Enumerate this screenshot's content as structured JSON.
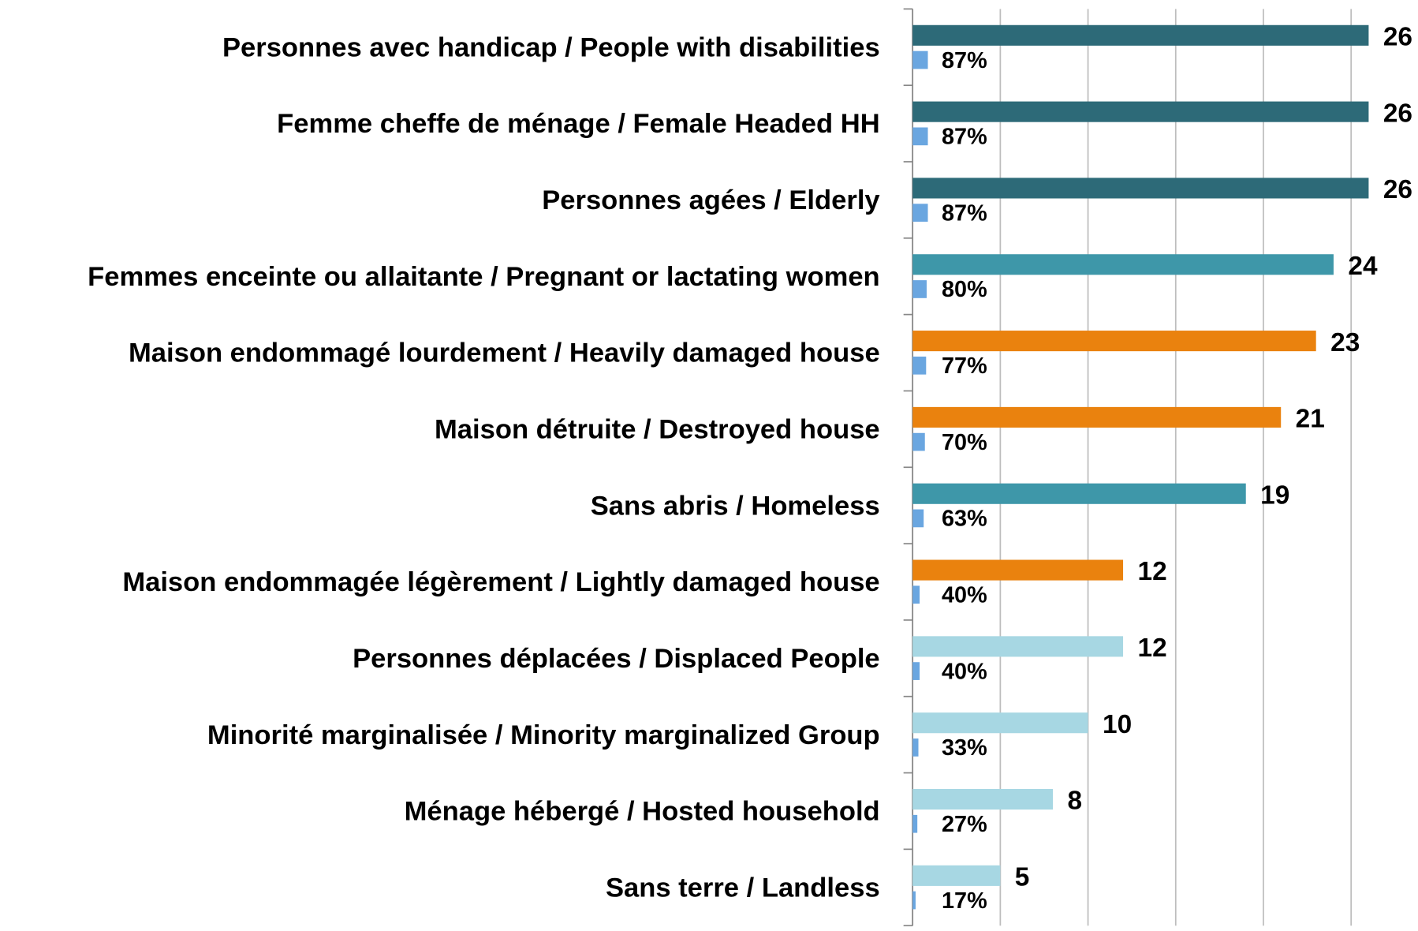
{
  "chart_data": {
    "type": "hbar",
    "categories": [
      "Personnes avec handicap / People with disabilities",
      "Femme cheffe de ménage / Female Headed HH",
      "Personnes agées / Elderly",
      "Femmes enceinte ou allaitante / Pregnant or lactating women",
      "Maison endommagé lourdement / Heavily damaged house",
      "Maison détruite / Destroyed house",
      "Sans abris / Homeless",
      "Maison endommagée légèrement / Lightly damaged house",
      "Personnes déplacées / Displaced People",
      "Minorité marginalisée / Minority marginalized Group",
      "Ménage hébergé / Hosted household",
      "Sans terre / Landless"
    ],
    "series": [
      {
        "values": [
          26,
          26,
          26,
          24,
          23,
          21,
          19,
          12,
          12,
          10,
          8,
          5
        ],
        "colors": [
          "#2d6a78",
          "#2d6a78",
          "#2d6a78",
          "#3e97a9",
          "#ea820e",
          "#ea820e",
          "#3e97a9",
          "#ea820e",
          "#a7d7e3",
          "#a7d7e3",
          "#a7d7e3",
          "#a7d7e3"
        ]
      },
      {
        "values": [
          0.87,
          0.87,
          0.87,
          0.8,
          0.77,
          0.7,
          0.63,
          0.4,
          0.4,
          0.33,
          0.27,
          0.17
        ],
        "value_labels": [
          "87%",
          "87%",
          "87%",
          "80%",
          "77%",
          "70%",
          "63%",
          "40%",
          "40%",
          "33%",
          "27%",
          "17%"
        ],
        "color": "#6aa6e0"
      }
    ],
    "xlim": [
      0,
      27
    ],
    "xticks": [
      0,
      5,
      10,
      15,
      20,
      25
    ],
    "grid": true
  }
}
